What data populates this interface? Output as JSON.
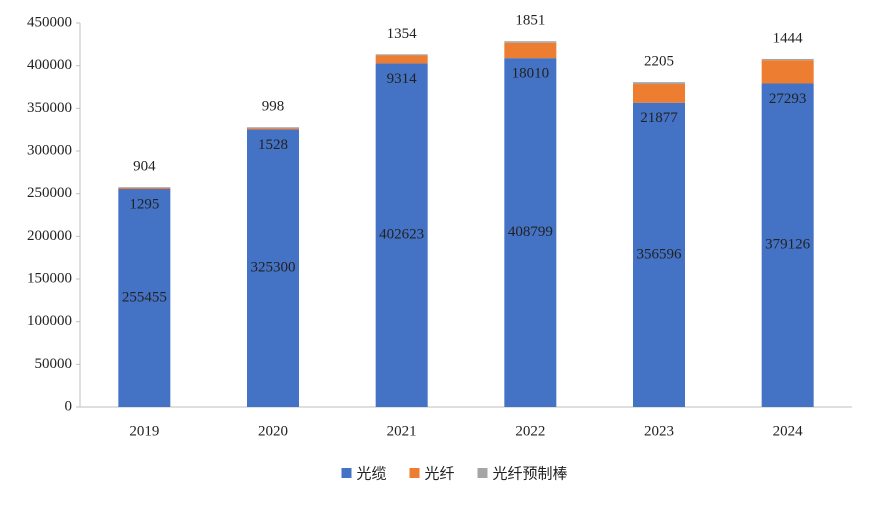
{
  "chart_data": {
    "type": "stacked_bar",
    "categories": [
      "2019",
      "2020",
      "2021",
      "2022",
      "2023",
      "2024"
    ],
    "series": [
      {
        "name": "光缆",
        "color": "#4472c4",
        "values": [
          255455,
          325300,
          402623,
          408799,
          356596,
          379126
        ]
      },
      {
        "name": "光纤",
        "color": "#ed7d31",
        "values": [
          1295,
          1528,
          9314,
          18010,
          21877,
          27293
        ]
      },
      {
        "name": "光纤预制棒",
        "color": "#a5a5a5",
        "values": [
          904,
          998,
          1354,
          1851,
          2205,
          1444
        ]
      }
    ],
    "ylim": [
      0,
      450000
    ],
    "yticks": [
      0,
      50000,
      100000,
      150000,
      200000,
      250000,
      300000,
      350000,
      400000,
      450000
    ],
    "legend": "bottom"
  }
}
